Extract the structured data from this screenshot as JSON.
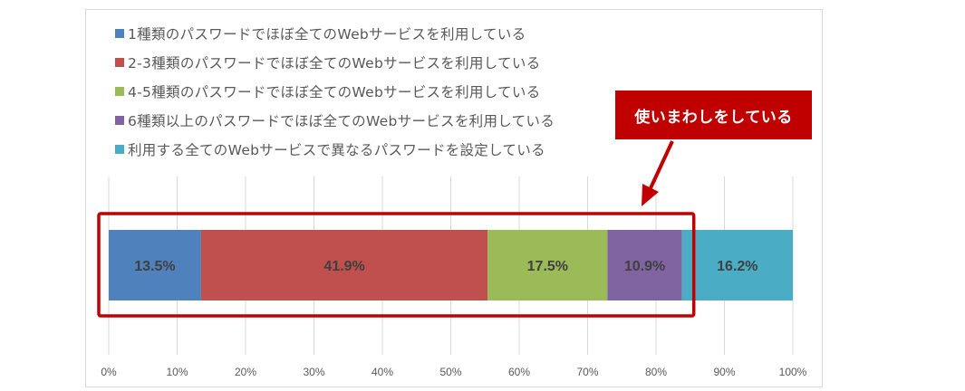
{
  "chart_data": {
    "type": "bar",
    "orientation": "horizontal",
    "stacked": true,
    "series": [
      {
        "name": "1種類のパスワードでほぼ全てのWebサービスを利用している",
        "value": 13.5,
        "label": "13.5%",
        "color": "#4f81bd"
      },
      {
        "name": "2-3種類のパスワードでほぼ全てのWebサービスを利用している",
        "value": 41.9,
        "label": "41.9%",
        "color": "#c0504d"
      },
      {
        "name": "4-5種類のパスワードでほぼ全てのWebサービスを利用している",
        "value": 17.5,
        "label": "17.5%",
        "color": "#9bbb59"
      },
      {
        "name": "6種類以上のパスワードでほぼ全てのWebサービスを利用している",
        "value": 10.9,
        "label": "10.9%",
        "color": "#8064a2"
      },
      {
        "name": "利用する全てのWebサービスで異なるパスワードを設定している",
        "value": 16.2,
        "label": "16.2%",
        "color": "#4bacc6"
      }
    ],
    "xlim": [
      0,
      100
    ],
    "xticks": [
      "0%",
      "10%",
      "20%",
      "30%",
      "40%",
      "50%",
      "60%",
      "70%",
      "80%",
      "90%",
      "100%"
    ],
    "grid": true,
    "legend_position": "top"
  },
  "annotation": {
    "text": "使いまわしをしている",
    "color": "#c00000",
    "highlight_series": 4
  }
}
